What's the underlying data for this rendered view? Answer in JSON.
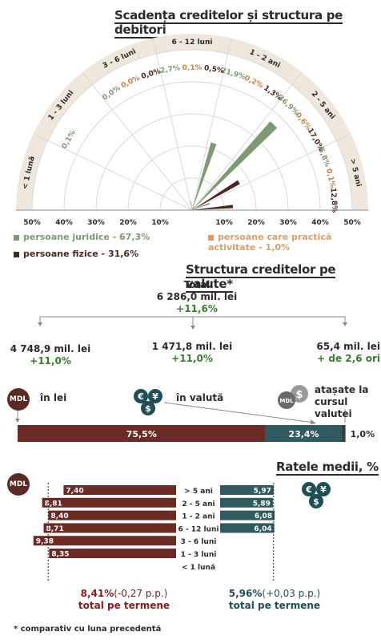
{
  "header_radial": "Scadența creditelor și structura pe debitori",
  "header_currency": "Structura creditelor pe valute*",
  "header_rates": "Ratele medii, %",
  "footnote": "* comparativ cu luna precedentă",
  "colors": {
    "juridice": "#7f9a72",
    "fizice": "#4a2622",
    "activitate": "#d7a06a",
    "band": "#efe7dc",
    "wine": "#6b2a23",
    "teal": "#2f5b60",
    "green": "#3a7d2f"
  },
  "chart_data": [
    {
      "type": "radial-bar",
      "title": "Scadența creditelor și structura pe debitori",
      "axis_ticks": [
        "50%",
        "40%",
        "30%",
        "20%",
        "10%",
        "10%",
        "20%",
        "30%",
        "40%",
        "50%"
      ],
      "categories": [
        "< 1 lună",
        "1 - 3 luni",
        "3 - 6 luni",
        "6 - 12 luni",
        "1 - 2 ani",
        "2 - 5 ani",
        "> 5 ani"
      ],
      "series": [
        {
          "name": "persoane juridice - 67,3%",
          "values": [
            0.0,
            0.1,
            0.0,
            2.7,
            21.9,
            36.9,
            5.8
          ],
          "labels": [
            "",
            "0,1%",
            "0,0%",
            "2,7%",
            "21,9%",
            "36,9%",
            "5,8%"
          ]
        },
        {
          "name": "persoane care practică activitate - 1,0%",
          "values": [
            0.0,
            0.0,
            0.0,
            0.1,
            0.2,
            0.6,
            0.1
          ],
          "labels": [
            "",
            "",
            "0,0%",
            "0,1%",
            "0,2%",
            "0,6%",
            "0,1%"
          ]
        },
        {
          "name": "persoane fizice - 31,6%",
          "values": [
            0.0,
            0.0,
            0.0,
            0.5,
            1.3,
            17.0,
            12.8
          ],
          "labels": [
            "",
            "",
            "0,0%",
            "0,5%",
            "1,3%",
            "17,0%",
            "12,8%"
          ]
        }
      ]
    },
    {
      "type": "bar",
      "title": "Structura creditelor pe valute*",
      "total_label": "Total",
      "total_value": "6 286,0 mil. lei",
      "total_change": "+11,6%",
      "parts": [
        {
          "label": "în lei",
          "value": "4 748,9 mil. lei",
          "change": "+11,0%",
          "share": 75.5,
          "share_label": "75,5%"
        },
        {
          "label": "în valută",
          "value": "1 471,8 mil. lei",
          "change": "+11,0%",
          "share": 23.4,
          "share_label": "23,4%"
        },
        {
          "label": "atașate la cursul valutei",
          "value": "65,4 mil. lei",
          "change": "+ de 2,6 ori",
          "share": 1.0,
          "share_label": "1,0%"
        }
      ]
    },
    {
      "type": "bar",
      "title": "Ratele medii, %",
      "categories": [
        "> 5 ani",
        "2 - 5 ani",
        "1 - 2 ani",
        "6 - 12 luni",
        "3 - 6 luni",
        "1 - 3 luni",
        "< 1 lună"
      ],
      "series": [
        {
          "name": "lei",
          "values": [
            7.4,
            8.81,
            8.4,
            8.71,
            9.38,
            8.35,
            null
          ],
          "labels": [
            "7,40",
            "8,81",
            "8,40",
            "8,71",
            "9,38",
            "8,35",
            ""
          ]
        },
        {
          "name": "valută",
          "values": [
            5.97,
            5.89,
            6.08,
            6.04,
            null,
            null,
            null
          ],
          "labels": [
            "5,97",
            "5,89",
            "6,08",
            "6,04",
            "",
            "",
            ""
          ]
        }
      ],
      "totals": [
        {
          "value": "8,41%",
          "change": "(-0,27 p.p.)",
          "label": "total pe termene"
        },
        {
          "value": "5,96%",
          "change": "(+0,03 p.p.)",
          "label": "total pe termene"
        }
      ]
    }
  ],
  "badges": {
    "mdl": "MDL",
    "eur": "€",
    "usd": "$",
    "yen": "¥"
  }
}
